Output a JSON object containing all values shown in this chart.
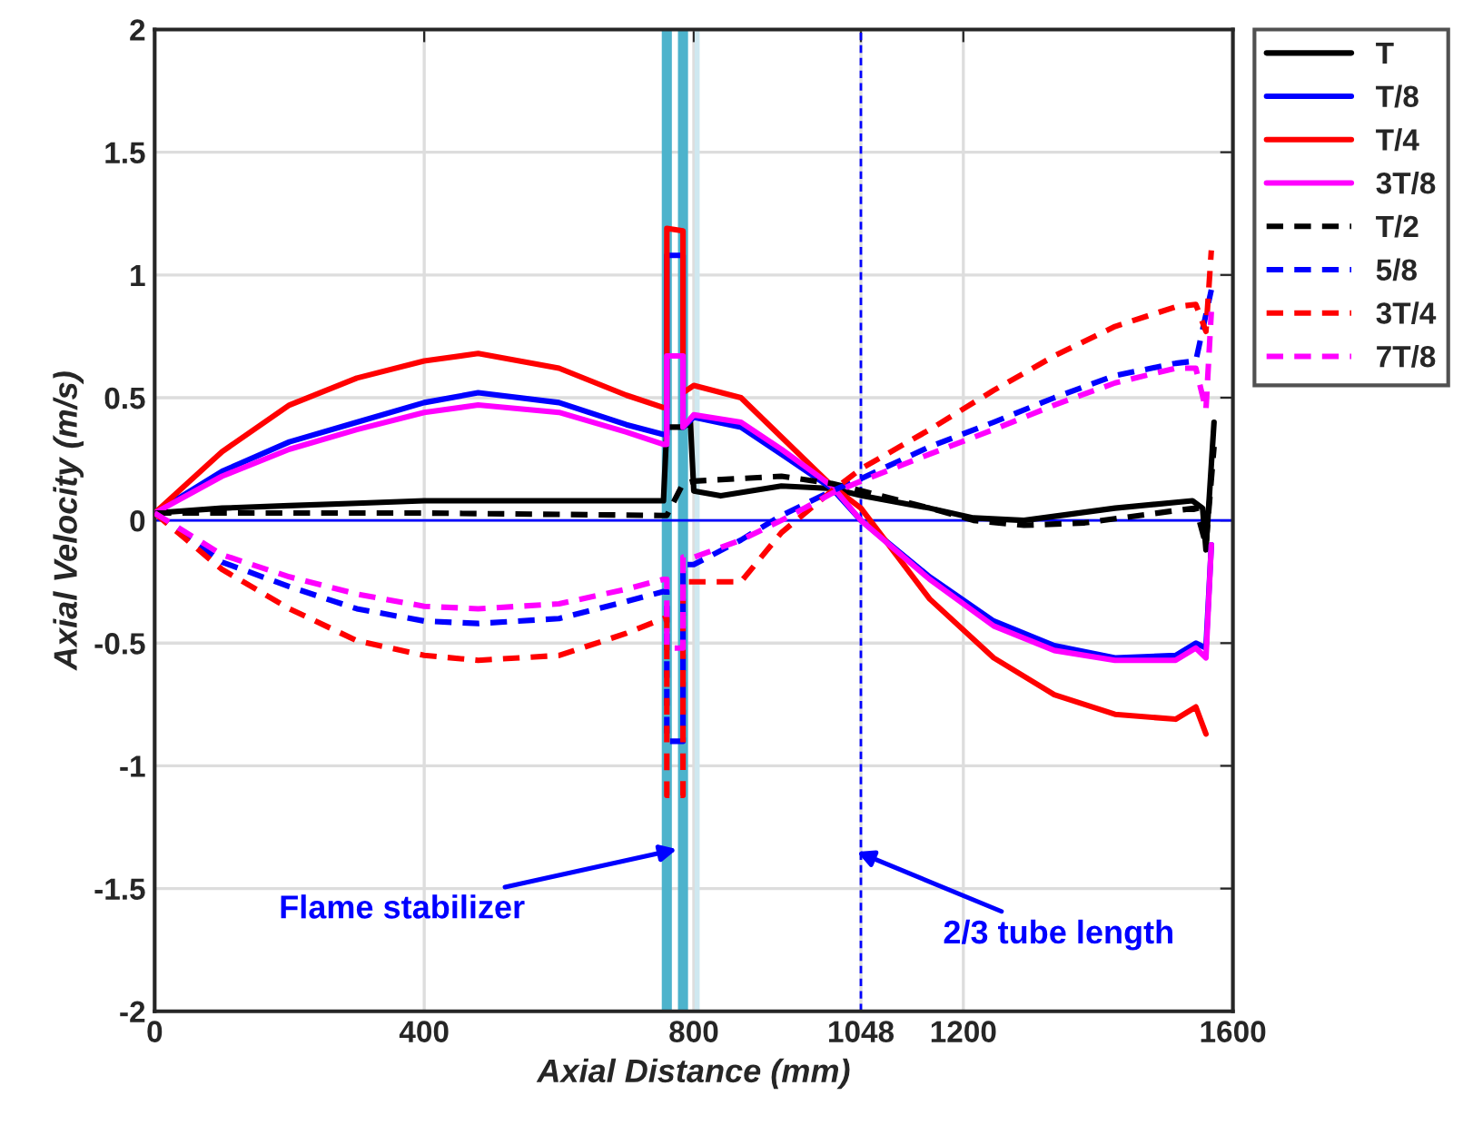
{
  "chart_data": {
    "type": "line",
    "xlabel": "Axial Distance (mm)",
    "ylabel": "Axial Velocity (m/s)",
    "xlim": [
      0,
      1600
    ],
    "xticks": [
      0,
      400,
      800,
      1048,
      1200,
      1600
    ],
    "ylim": [
      -2,
      2
    ],
    "yticks": [
      {
        "value": -2,
        "label": "-2"
      },
      {
        "value": -1.5,
        "label": "-1.5"
      },
      {
        "value": -1,
        "label": "-1"
      },
      {
        "value": -0.5,
        "label": "-0.5"
      },
      {
        "value": 0,
        "label": "0"
      },
      {
        "value": 0.5,
        "label": "0.5"
      },
      {
        "value": 1,
        "label": "1"
      },
      {
        "value": 1.5,
        "label": "1.5"
      },
      {
        "value": 2,
        "label": "2"
      }
    ],
    "grid": true,
    "legend": "top right",
    "series": [
      {
        "name": "T",
        "color": "#000000",
        "line_style": "solid",
        "x": [
          0,
          100,
          200,
          300,
          400,
          480,
          600,
          700,
          755,
          760,
          784,
          795,
          800,
          840,
          930,
          1005,
          1050,
          1150,
          1215,
          1290,
          1425,
          1540,
          1555,
          1560,
          1572
        ],
        "values": [
          0.03,
          0.05,
          0.06,
          0.07,
          0.08,
          0.08,
          0.08,
          0.08,
          0.08,
          0.38,
          0.38,
          0.4,
          0.12,
          0.1,
          0.14,
          0.13,
          0.1,
          0.05,
          0.01,
          0.0,
          0.05,
          0.08,
          0.05,
          -0.12,
          0.4
        ]
      },
      {
        "name": "T/8",
        "color": "#0000ff",
        "line_style": "solid",
        "x": [
          0,
          100,
          200,
          300,
          400,
          480,
          600,
          700,
          755,
          760,
          760,
          784,
          784,
          800,
          870,
          930,
          1005,
          1048,
          1150,
          1245,
          1335,
          1425,
          1515,
          1545,
          1560,
          1568
        ],
        "values": [
          0.03,
          0.2,
          0.32,
          0.4,
          0.48,
          0.52,
          0.48,
          0.39,
          0.35,
          0.35,
          1.08,
          1.08,
          0.38,
          0.42,
          0.38,
          0.27,
          0.13,
          0.0,
          -0.23,
          -0.41,
          -0.51,
          -0.56,
          -0.55,
          -0.5,
          -0.52,
          -0.1
        ]
      },
      {
        "name": "T/4",
        "color": "#ff0000",
        "line_style": "solid",
        "x": [
          0,
          100,
          200,
          300,
          400,
          480,
          600,
          700,
          755,
          760,
          760,
          784,
          784,
          800,
          870,
          930,
          1005,
          1048,
          1150,
          1245,
          1335,
          1425,
          1515,
          1545,
          1560
        ],
        "values": [
          0.03,
          0.28,
          0.47,
          0.58,
          0.65,
          0.68,
          0.62,
          0.51,
          0.46,
          0.46,
          1.19,
          1.18,
          0.52,
          0.55,
          0.5,
          0.34,
          0.14,
          0.05,
          -0.32,
          -0.56,
          -0.71,
          -0.79,
          -0.81,
          -0.76,
          -0.87
        ]
      },
      {
        "name": "3T/8",
        "color": "#ff00ff",
        "line_style": "solid",
        "x": [
          0,
          100,
          200,
          300,
          400,
          480,
          600,
          700,
          755,
          760,
          760,
          784,
          784,
          800,
          870,
          930,
          1005,
          1048,
          1150,
          1245,
          1335,
          1425,
          1515,
          1545,
          1560,
          1568
        ],
        "values": [
          0.03,
          0.18,
          0.29,
          0.37,
          0.44,
          0.47,
          0.44,
          0.36,
          0.31,
          0.31,
          0.67,
          0.67,
          0.38,
          0.43,
          0.4,
          0.29,
          0.14,
          0.0,
          -0.24,
          -0.43,
          -0.53,
          -0.57,
          -0.57,
          -0.52,
          -0.56,
          -0.1
        ]
      },
      {
        "name": "T/2",
        "color": "#000000",
        "line_style": "dashed",
        "x": [
          0,
          400,
          755,
          760,
          784,
          800,
          930,
          1005,
          1050,
          1150,
          1215,
          1290,
          1380,
          1515,
          1545,
          1560,
          1572
        ],
        "values": [
          0.03,
          0.03,
          0.02,
          0.02,
          0.15,
          0.16,
          0.18,
          0.15,
          0.12,
          0.05,
          0.0,
          -0.02,
          -0.01,
          0.04,
          0.05,
          -0.1,
          0.3
        ]
      },
      {
        "name": "5/8",
        "color": "#0000ff",
        "line_style": "dashed",
        "x": [
          0,
          100,
          200,
          300,
          400,
          480,
          600,
          700,
          755,
          760,
          760,
          784,
          784,
          800,
          870,
          930,
          1005,
          1048,
          1150,
          1245,
          1335,
          1425,
          1515,
          1545,
          1560,
          1568
        ],
        "values": [
          0.03,
          -0.17,
          -0.27,
          -0.36,
          -0.41,
          -0.42,
          -0.4,
          -0.33,
          -0.29,
          -0.29,
          -0.9,
          -0.9,
          -0.18,
          -0.18,
          -0.08,
          0.02,
          0.12,
          0.17,
          0.3,
          0.4,
          0.5,
          0.59,
          0.64,
          0.65,
          null,
          0.94
        ]
      },
      {
        "name": "3T/4",
        "color": "#ff0000",
        "line_style": "dashed",
        "x": [
          0,
          100,
          200,
          300,
          400,
          480,
          600,
          700,
          755,
          760,
          760,
          784,
          784,
          800,
          870,
          930,
          1005,
          1048,
          1150,
          1245,
          1335,
          1425,
          1515,
          1545,
          1560,
          1568
        ],
        "values": [
          0.03,
          -0.2,
          -0.36,
          -0.49,
          -0.55,
          -0.57,
          -0.55,
          -0.46,
          -0.4,
          -0.4,
          -1.12,
          -1.12,
          -0.25,
          -0.25,
          -0.25,
          -0.05,
          0.12,
          0.21,
          0.37,
          0.53,
          0.67,
          0.79,
          0.87,
          0.88,
          0.77,
          1.1
        ]
      },
      {
        "name": "7T/8",
        "color": "#ff00ff",
        "line_style": "dashed",
        "x": [
          0,
          100,
          200,
          300,
          400,
          480,
          600,
          700,
          755,
          760,
          760,
          784,
          784,
          800,
          870,
          930,
          1005,
          1048,
          1150,
          1245,
          1335,
          1425,
          1515,
          1545,
          1560,
          1568
        ],
        "values": [
          0.03,
          -0.14,
          -0.23,
          -0.3,
          -0.35,
          -0.36,
          -0.34,
          -0.28,
          -0.24,
          -0.24,
          -0.52,
          -0.52,
          -0.15,
          -0.15,
          -0.08,
          0.0,
          0.11,
          0.16,
          0.27,
          0.37,
          0.47,
          0.56,
          0.62,
          0.62,
          0.45,
          0.85
        ]
      }
    ],
    "ref_lines": [
      {
        "axis": "x",
        "value": 760,
        "color": "#4db3cc",
        "line_style": "solid"
      },
      {
        "axis": "x",
        "value": 784,
        "color": "#4db3cc",
        "line_style": "solid"
      },
      {
        "axis": "x",
        "value": 805,
        "color": "#cfe8f0",
        "line_style": "solid"
      },
      {
        "axis": "x",
        "value": 1048,
        "color": "#0000ff",
        "line_style": "dashed"
      },
      {
        "axis": "y",
        "value": 0,
        "color": "#0000ff",
        "line_style": "solid"
      }
    ],
    "annotations": [
      {
        "text": "Flame stabilizer",
        "x": 775,
        "y": -1.34
      },
      {
        "text": "2/3 tube length",
        "x": 1042,
        "y": -1.35
      }
    ]
  }
}
